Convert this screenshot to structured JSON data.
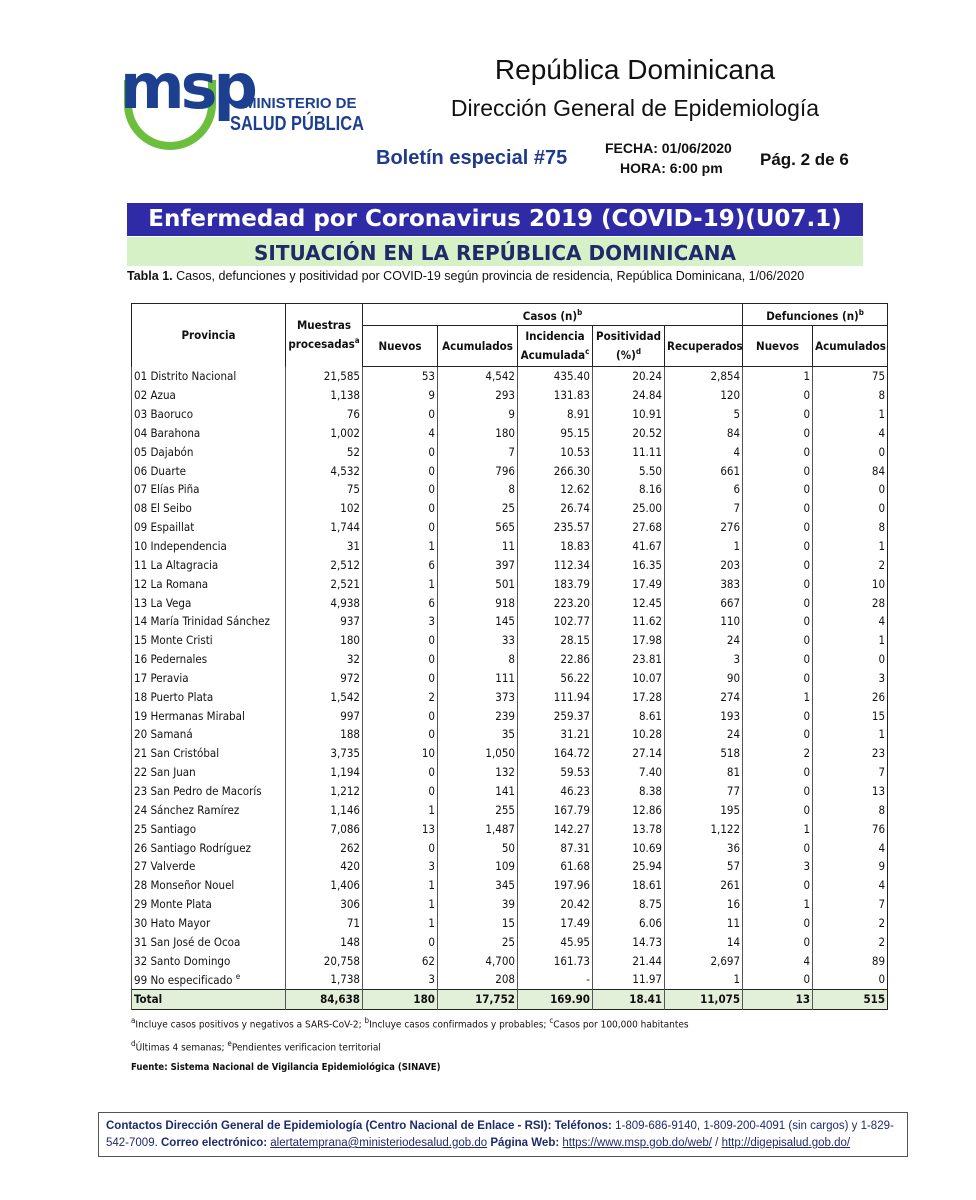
{
  "header": {
    "logo_mark": "msp",
    "logo_line1": "MINISTERIO DE",
    "logo_line2": "SALUD PÚBLICA",
    "country": "República Dominicana",
    "directorate": "Dirección General de Epidemiología",
    "bulletin": "Boletín especial #75",
    "date": "FECHA: 01/06/2020",
    "time": "HORA: 6:00 pm",
    "page": "Pág. 2 de 6"
  },
  "banner": {
    "title": "Enfermedad por Coronavirus 2019 (COVID-19)(U07.1)",
    "subtitle": "SITUACIÓN EN LA REPÚBLICA DOMINICANA"
  },
  "table": {
    "caption_label": "Tabla 1.",
    "caption": "Casos, defunciones y positividad por COVID-19 según provincia de residencia, República Dominicana, 1/06/2020",
    "groups": {
      "casos": {
        "text": "Casos (n)",
        "sup": "b"
      },
      "defunciones": {
        "text": "Defunciones (n)",
        "sup": "b"
      }
    },
    "columns": [
      {
        "text": "Provincia"
      },
      {
        "text": "Muestras",
        "text2": "procesadas",
        "sup": "a"
      },
      {
        "text": "Nuevos"
      },
      {
        "text": "Acumulados"
      },
      {
        "text": "Incidencia",
        "text2": "Acumulada",
        "sup": "c"
      },
      {
        "text": "Positividad",
        "text2": "(%)",
        "sup": "d"
      },
      {
        "text": "Recuperados"
      },
      {
        "text": "Nuevos"
      },
      {
        "text": "Acumulados"
      }
    ],
    "rows": [
      [
        "01 Distrito Nacional",
        "21,585",
        "53",
        "4,542",
        "435.40",
        "20.24",
        "2,854",
        "1",
        "75"
      ],
      [
        "02 Azua",
        "1,138",
        "9",
        "293",
        "131.83",
        "24.84",
        "120",
        "0",
        "8"
      ],
      [
        "03 Baoruco",
        "76",
        "0",
        "9",
        "8.91",
        "10.91",
        "5",
        "0",
        "1"
      ],
      [
        "04 Barahona",
        "1,002",
        "4",
        "180",
        "95.15",
        "20.52",
        "84",
        "0",
        "4"
      ],
      [
        "05 Dajabón",
        "52",
        "0",
        "7",
        "10.53",
        "11.11",
        "4",
        "0",
        "0"
      ],
      [
        "06 Duarte",
        "4,532",
        "0",
        "796",
        "266.30",
        "5.50",
        "661",
        "0",
        "84"
      ],
      [
        "07 Elías Piña",
        "75",
        "0",
        "8",
        "12.62",
        "8.16",
        "6",
        "0",
        "0"
      ],
      [
        "08 El Seibo",
        "102",
        "0",
        "25",
        "26.74",
        "25.00",
        "7",
        "0",
        "0"
      ],
      [
        "09 Espaillat",
        "1,744",
        "0",
        "565",
        "235.57",
        "27.68",
        "276",
        "0",
        "8"
      ],
      [
        "10 Independencia",
        "31",
        "1",
        "11",
        "18.83",
        "41.67",
        "1",
        "0",
        "1"
      ],
      [
        "11 La Altagracia",
        "2,512",
        "6",
        "397",
        "112.34",
        "16.35",
        "203",
        "0",
        "2"
      ],
      [
        "12 La Romana",
        "2,521",
        "1",
        "501",
        "183.79",
        "17.49",
        "383",
        "0",
        "10"
      ],
      [
        "13 La Vega",
        "4,938",
        "6",
        "918",
        "223.20",
        "12.45",
        "667",
        "0",
        "28"
      ],
      [
        "14 María Trinidad Sánchez",
        "937",
        "3",
        "145",
        "102.77",
        "11.62",
        "110",
        "0",
        "4"
      ],
      [
        "15 Monte Cristi",
        "180",
        "0",
        "33",
        "28.15",
        "17.98",
        "24",
        "0",
        "1"
      ],
      [
        "16 Pedernales",
        "32",
        "0",
        "8",
        "22.86",
        "23.81",
        "3",
        "0",
        "0"
      ],
      [
        "17 Peravia",
        "972",
        "0",
        "111",
        "56.22",
        "10.07",
        "90",
        "0",
        "3"
      ],
      [
        "18 Puerto Plata",
        "1,542",
        "2",
        "373",
        "111.94",
        "17.28",
        "274",
        "1",
        "26"
      ],
      [
        "19 Hermanas Mirabal",
        "997",
        "0",
        "239",
        "259.37",
        "8.61",
        "193",
        "0",
        "15"
      ],
      [
        "20 Samaná",
        "188",
        "0",
        "35",
        "31.21",
        "10.28",
        "24",
        "0",
        "1"
      ],
      [
        "21 San Cristóbal",
        "3,735",
        "10",
        "1,050",
        "164.72",
        "27.14",
        "518",
        "2",
        "23"
      ],
      [
        "22 San Juan",
        "1,194",
        "0",
        "132",
        "59.53",
        "7.40",
        "81",
        "0",
        "7"
      ],
      [
        "23 San Pedro de Macorís",
        "1,212",
        "0",
        "141",
        "46.23",
        "8.38",
        "77",
        "0",
        "13"
      ],
      [
        "24 Sánchez Ramírez",
        "1,146",
        "1",
        "255",
        "167.79",
        "12.86",
        "195",
        "0",
        "8"
      ],
      [
        "25 Santiago",
        "7,086",
        "13",
        "1,487",
        "142.27",
        "13.78",
        "1,122",
        "1",
        "76"
      ],
      [
        "26 Santiago Rodríguez",
        "262",
        "0",
        "50",
        "87.31",
        "10.69",
        "36",
        "0",
        "4"
      ],
      [
        "27 Valverde",
        "420",
        "3",
        "109",
        "61.68",
        "25.94",
        "57",
        "3",
        "9"
      ],
      [
        "28 Monseñor Nouel",
        "1,406",
        "1",
        "345",
        "197.96",
        "18.61",
        "261",
        "0",
        "4"
      ],
      [
        "29 Monte Plata",
        "306",
        "1",
        "39",
        "20.42",
        "8.75",
        "16",
        "1",
        "7"
      ],
      [
        "30 Hato Mayor",
        "71",
        "1",
        "15",
        "17.49",
        "6.06",
        "11",
        "0",
        "2"
      ],
      [
        "31 San José de Ocoa",
        "148",
        "0",
        "25",
        "45.95",
        "14.73",
        "14",
        "0",
        "2"
      ],
      [
        "32 Santo Domingo",
        "20,758",
        "62",
        "4,700",
        "161.73",
        "21.44",
        "2,697",
        "4",
        "89"
      ],
      [
        "99 No especificado",
        "1,738",
        "3",
        "208",
        "-",
        "11.97",
        "1",
        "0",
        "0"
      ]
    ],
    "row_notes": {
      "32": "e"
    },
    "total": [
      "Total",
      "84,638",
      "180",
      "17,752",
      "169.90",
      "18.41",
      "11,075",
      "13",
      "515"
    ]
  },
  "footnotes": {
    "line1": [
      {
        "sup": "a",
        "text": "Incluye casos positivos y negativos a SARS-CoV-2;"
      },
      {
        "sup": "b",
        "text": "Incluye casos confirmados y probables;"
      },
      {
        "sup": "c",
        "text": "Casos por 100,000 habitantes"
      }
    ],
    "line2": [
      {
        "sup": "d",
        "text": "Últimas 4 semanas;"
      },
      {
        "sup": "e",
        "text": "Pendientes verificacion territorial"
      }
    ],
    "source": "Fuente: Sistema Nacional de Vigilancia Epidemiológica (SINAVE)"
  },
  "footer": [
    "Contactos Dirección General de Epidemiología (Centro Nacional de Enlace - RSI): Teléfonos:",
    "1-809-686-9140, 1-809-200-4091 (sin cargos) y 1-829-542-7009.",
    "Correo electrónico:",
    "alertatemprana@ministeriodesalud.gob.do",
    "Página Web:",
    "https://www.msp.gob.do/web/",
    "/",
    "http://digepisalud.gob.do/"
  ]
}
